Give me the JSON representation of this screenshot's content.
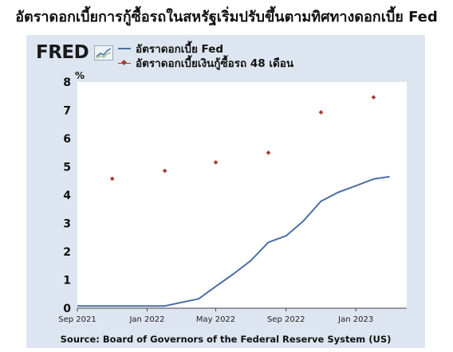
{
  "title": "อัตราดอกเบี้ยการกู้ซื้อรถในสหรัฐเริ่มปรับขึ้นตามทิศทางดอกเบี้ย Fed",
  "logo": {
    "text": "FRED",
    "icon": "fred-chart-icon"
  },
  "source": "Source: Board of Governors of the Federal Reserve System (US)",
  "colors": {
    "panel": "#dde6f0",
    "fed_line": "#4a6fa5",
    "auto_loan": "#a83b32"
  },
  "chart_data": {
    "type": "line",
    "ylabel": "%",
    "ylim": [
      0,
      8
    ],
    "yticks": [
      0,
      1,
      2,
      3,
      4,
      5,
      6,
      7,
      8
    ],
    "xlim": [
      "2021-09-01",
      "2023-03-31"
    ],
    "xticks": [
      {
        "label": "Sep 2021",
        "date": "2021-09-01"
      },
      {
        "label": "Jan 2022",
        "date": "2022-01-01"
      },
      {
        "label": "May 2022",
        "date": "2022-05-01"
      },
      {
        "label": "Sep 2022",
        "date": "2022-09-01"
      },
      {
        "label": "Jan 2023",
        "date": "2023-01-01"
      }
    ],
    "grid": false,
    "legend_position": "top",
    "series": [
      {
        "name": "อัตราดอกเบี้ย Fed",
        "kind": "line",
        "color": "#4a6fa5",
        "points": [
          [
            "2021-09-01",
            0.08
          ],
          [
            "2021-10-01",
            0.08
          ],
          [
            "2021-11-01",
            0.08
          ],
          [
            "2021-12-01",
            0.08
          ],
          [
            "2022-01-01",
            0.08
          ],
          [
            "2022-02-01",
            0.08
          ],
          [
            "2022-03-01",
            0.2
          ],
          [
            "2022-04-01",
            0.33
          ],
          [
            "2022-05-01",
            0.77
          ],
          [
            "2022-06-01",
            1.21
          ],
          [
            "2022-07-01",
            1.68
          ],
          [
            "2022-08-01",
            2.33
          ],
          [
            "2022-09-01",
            2.56
          ],
          [
            "2022-10-01",
            3.08
          ],
          [
            "2022-11-01",
            3.78
          ],
          [
            "2022-12-01",
            4.1
          ],
          [
            "2023-01-01",
            4.33
          ],
          [
            "2023-02-01",
            4.57
          ],
          [
            "2023-03-01",
            4.65
          ]
        ]
      },
      {
        "name": "อัตราดอกเบี้ยเงินกู้ซื้อรถ 48 เดือน",
        "kind": "scatter",
        "color": "#a83b32",
        "points": [
          [
            "2021-11-01",
            4.58
          ],
          [
            "2022-02-01",
            4.86
          ],
          [
            "2022-05-01",
            5.16
          ],
          [
            "2022-08-01",
            5.5
          ],
          [
            "2022-11-01",
            6.93
          ],
          [
            "2023-02-01",
            7.46
          ]
        ]
      }
    ]
  }
}
